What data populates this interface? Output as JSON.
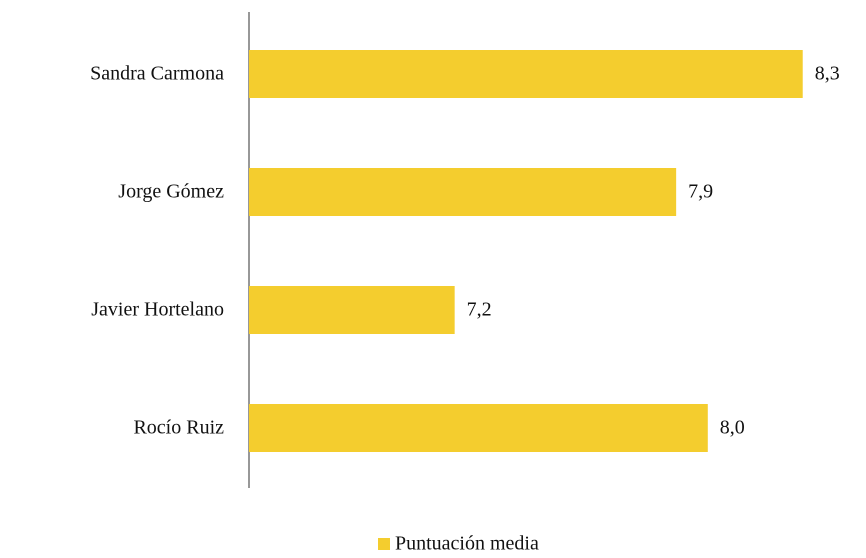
{
  "chart_data": {
    "type": "hbar",
    "categories": [
      "Sandra Carmona",
      "Jorge Gómez",
      "Javier Hortelano",
      "Rocío Ruiz"
    ],
    "series": [
      {
        "name": "Puntuación media",
        "color": "#f4cd2e",
        "values": [
          8.3,
          7.9,
          7.2,
          8.0
        ],
        "value_labels": [
          "8,3",
          "7,9",
          "7,2",
          "8,0"
        ]
      }
    ],
    "xlim": [
      6.55,
      8.5
    ],
    "legend": "bottom"
  }
}
